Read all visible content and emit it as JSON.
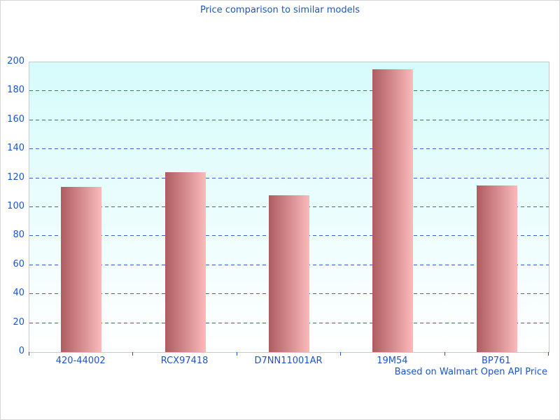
{
  "chart_data": {
    "type": "bar",
    "title": "Price comparison to similar models",
    "categories": [
      "420-44002",
      "RCX97418",
      "D7NN11001AR",
      "19M54",
      "BP761"
    ],
    "values": [
      114,
      124,
      108,
      195,
      115
    ],
    "xlabel": "",
    "ylabel": "",
    "ylim": [
      0,
      200
    ],
    "ytick_step": 20,
    "grid": "horizontal-dashed",
    "legend": "none",
    "footer": "Based on Walmart Open API Price",
    "colors": {
      "title_text": "#1c55cb",
      "axis_text": "#1c55cb",
      "gridline": "#3465c8",
      "tick": "#2255c4",
      "plot_bg_top": "#d6fbfb",
      "plot_bg_bottom": "#ffffff",
      "bar_gradient_left": "#ae5c60",
      "bar_gradient_right": "#fbbabb",
      "plot_border": "#c6cacd"
    }
  }
}
